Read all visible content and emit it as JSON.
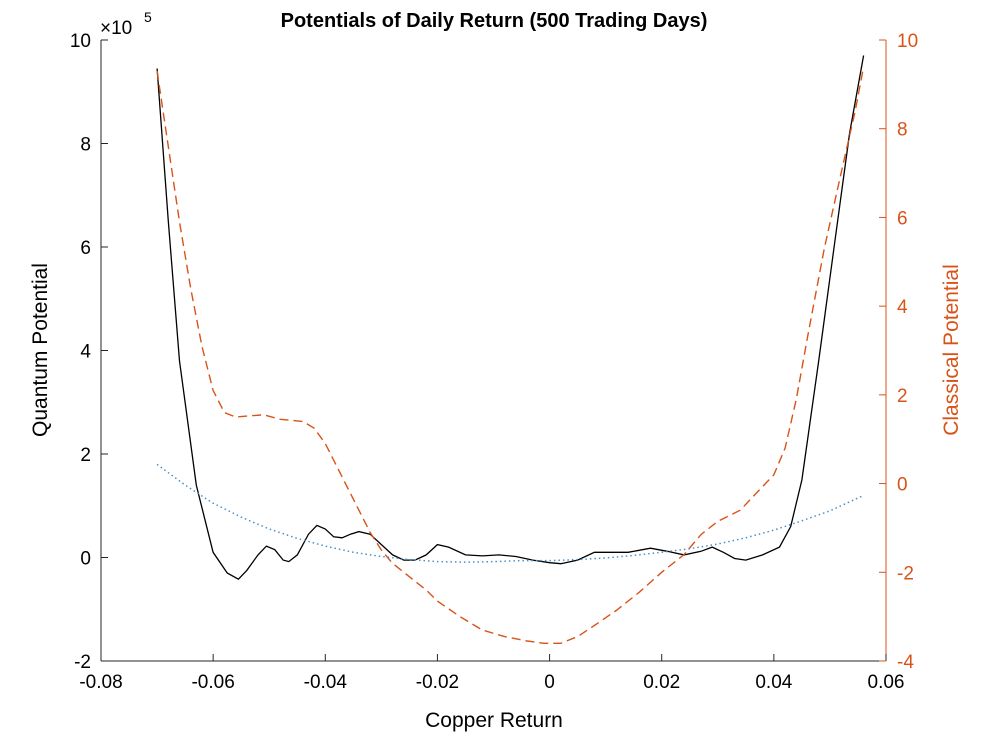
{
  "chart_data": {
    "type": "line",
    "title": "Potentials of Daily Return (500 Trading Days)",
    "xlabel": "Copper Return",
    "ylabel_left": "Quantum Potential",
    "ylabel_right": "Classical Potential",
    "left_exponent_base": "×10",
    "left_exponent_power": "5",
    "xlim": [
      -0.08,
      0.06
    ],
    "ylim_left": [
      -2,
      10
    ],
    "ylim_right": [
      -4,
      10
    ],
    "xticks": [
      -0.08,
      -0.06,
      -0.04,
      -0.02,
      0,
      0.02,
      0.04,
      0.06
    ],
    "xtick_labels": [
      "-0.08",
      "-0.06",
      "-0.04",
      "-0.02",
      "0",
      "0.02",
      "0.04",
      "0.06"
    ],
    "yticks_left": [
      -2,
      0,
      2,
      4,
      6,
      8,
      10
    ],
    "ytick_labels_left": [
      "-2",
      "0",
      "2",
      "4",
      "6",
      "8",
      "10"
    ],
    "yticks_right": [
      -4,
      -2,
      0,
      2,
      4,
      6,
      8,
      10
    ],
    "ytick_labels_right": [
      "-4",
      "-2",
      "0",
      "2",
      "4",
      "6",
      "8",
      "10"
    ],
    "grid": false,
    "colors": {
      "quantum": "#000000",
      "classical": "#D95319",
      "fit": "#4C8FC5"
    },
    "series": [
      {
        "axis": "left",
        "style": "solid",
        "points": [
          [
            -0.07,
            9.45
          ],
          [
            -0.068,
            6.5
          ],
          [
            -0.066,
            3.8
          ],
          [
            -0.063,
            1.4
          ],
          [
            -0.06,
            0.1
          ],
          [
            -0.0575,
            -0.3
          ],
          [
            -0.0555,
            -0.42
          ],
          [
            -0.054,
            -0.25
          ],
          [
            -0.052,
            0.05
          ],
          [
            -0.0505,
            0.22
          ],
          [
            -0.049,
            0.15
          ],
          [
            -0.0475,
            -0.05
          ],
          [
            -0.0465,
            -0.08
          ],
          [
            -0.045,
            0.05
          ],
          [
            -0.043,
            0.45
          ],
          [
            -0.0415,
            0.62
          ],
          [
            -0.04,
            0.55
          ],
          [
            -0.0385,
            0.4
          ],
          [
            -0.037,
            0.38
          ],
          [
            -0.0355,
            0.45
          ],
          [
            -0.034,
            0.5
          ],
          [
            -0.032,
            0.45
          ],
          [
            -0.03,
            0.25
          ],
          [
            -0.028,
            0.05
          ],
          [
            -0.026,
            -0.05
          ],
          [
            -0.024,
            -0.05
          ],
          [
            -0.022,
            0.05
          ],
          [
            -0.02,
            0.25
          ],
          [
            -0.018,
            0.2
          ],
          [
            -0.015,
            0.05
          ],
          [
            -0.012,
            0.03
          ],
          [
            -0.009,
            0.05
          ],
          [
            -0.006,
            0.02
          ],
          [
            -0.003,
            -0.05
          ],
          [
            0.0,
            -0.1
          ],
          [
            0.002,
            -0.12
          ],
          [
            0.005,
            -0.05
          ],
          [
            0.008,
            0.1
          ],
          [
            0.011,
            0.1
          ],
          [
            0.014,
            0.1
          ],
          [
            0.018,
            0.18
          ],
          [
            0.021,
            0.12
          ],
          [
            0.024,
            0.05
          ],
          [
            0.027,
            0.12
          ],
          [
            0.029,
            0.2
          ],
          [
            0.031,
            0.1
          ],
          [
            0.033,
            -0.02
          ],
          [
            0.035,
            -0.05
          ],
          [
            0.038,
            0.05
          ],
          [
            0.041,
            0.2
          ],
          [
            0.043,
            0.6
          ],
          [
            0.045,
            1.5
          ],
          [
            0.048,
            3.8
          ],
          [
            0.051,
            6.2
          ],
          [
            0.0535,
            8.2
          ],
          [
            0.056,
            9.7
          ]
        ]
      },
      {
        "axis": "right",
        "style": "dashed",
        "points": [
          [
            -0.07,
            9.3
          ],
          [
            -0.068,
            7.6
          ],
          [
            -0.066,
            5.9
          ],
          [
            -0.064,
            4.4
          ],
          [
            -0.062,
            3.1
          ],
          [
            -0.06,
            2.1
          ],
          [
            -0.058,
            1.6
          ],
          [
            -0.056,
            1.5
          ],
          [
            -0.054,
            1.52
          ],
          [
            -0.051,
            1.55
          ],
          [
            -0.048,
            1.45
          ],
          [
            -0.044,
            1.4
          ],
          [
            -0.042,
            1.25
          ],
          [
            -0.04,
            0.9
          ],
          [
            -0.038,
            0.4
          ],
          [
            -0.036,
            -0.1
          ],
          [
            -0.034,
            -0.6
          ],
          [
            -0.032,
            -1.1
          ],
          [
            -0.03,
            -1.5
          ],
          [
            -0.028,
            -1.8
          ],
          [
            -0.026,
            -2.0
          ],
          [
            -0.024,
            -2.2
          ],
          [
            -0.022,
            -2.4
          ],
          [
            -0.02,
            -2.65
          ],
          [
            -0.016,
            -3.0
          ],
          [
            -0.012,
            -3.3
          ],
          [
            -0.008,
            -3.45
          ],
          [
            -0.004,
            -3.55
          ],
          [
            -0.001,
            -3.6
          ],
          [
            0.002,
            -3.6
          ],
          [
            0.005,
            -3.45
          ],
          [
            0.008,
            -3.2
          ],
          [
            0.012,
            -2.85
          ],
          [
            0.016,
            -2.45
          ],
          [
            0.02,
            -2.0
          ],
          [
            0.024,
            -1.6
          ],
          [
            0.027,
            -1.15
          ],
          [
            0.03,
            -0.85
          ],
          [
            0.034,
            -0.6
          ],
          [
            0.037,
            -0.2
          ],
          [
            0.04,
            0.2
          ],
          [
            0.042,
            0.8
          ],
          [
            0.044,
            1.9
          ],
          [
            0.046,
            3.3
          ],
          [
            0.049,
            5.3
          ],
          [
            0.052,
            7.0
          ],
          [
            0.0545,
            8.4
          ],
          [
            0.056,
            9.4
          ]
        ]
      },
      {
        "axis": "left",
        "style": "dotted",
        "points": [
          [
            -0.07,
            1.8
          ],
          [
            -0.065,
            1.4
          ],
          [
            -0.06,
            1.05
          ],
          [
            -0.055,
            0.78
          ],
          [
            -0.05,
            0.55
          ],
          [
            -0.045,
            0.37
          ],
          [
            -0.04,
            0.22
          ],
          [
            -0.035,
            0.1
          ],
          [
            -0.03,
            0.02
          ],
          [
            -0.025,
            -0.04
          ],
          [
            -0.02,
            -0.08
          ],
          [
            -0.015,
            -0.09
          ],
          [
            -0.01,
            -0.08
          ],
          [
            -0.005,
            -0.06
          ],
          [
            0.0,
            -0.06
          ],
          [
            0.005,
            -0.04
          ],
          [
            0.01,
            -0.01
          ],
          [
            0.015,
            0.04
          ],
          [
            0.02,
            0.1
          ],
          [
            0.025,
            0.17
          ],
          [
            0.03,
            0.26
          ],
          [
            0.035,
            0.38
          ],
          [
            0.04,
            0.53
          ],
          [
            0.045,
            0.71
          ],
          [
            0.05,
            0.9
          ],
          [
            0.056,
            1.2
          ]
        ]
      }
    ]
  }
}
